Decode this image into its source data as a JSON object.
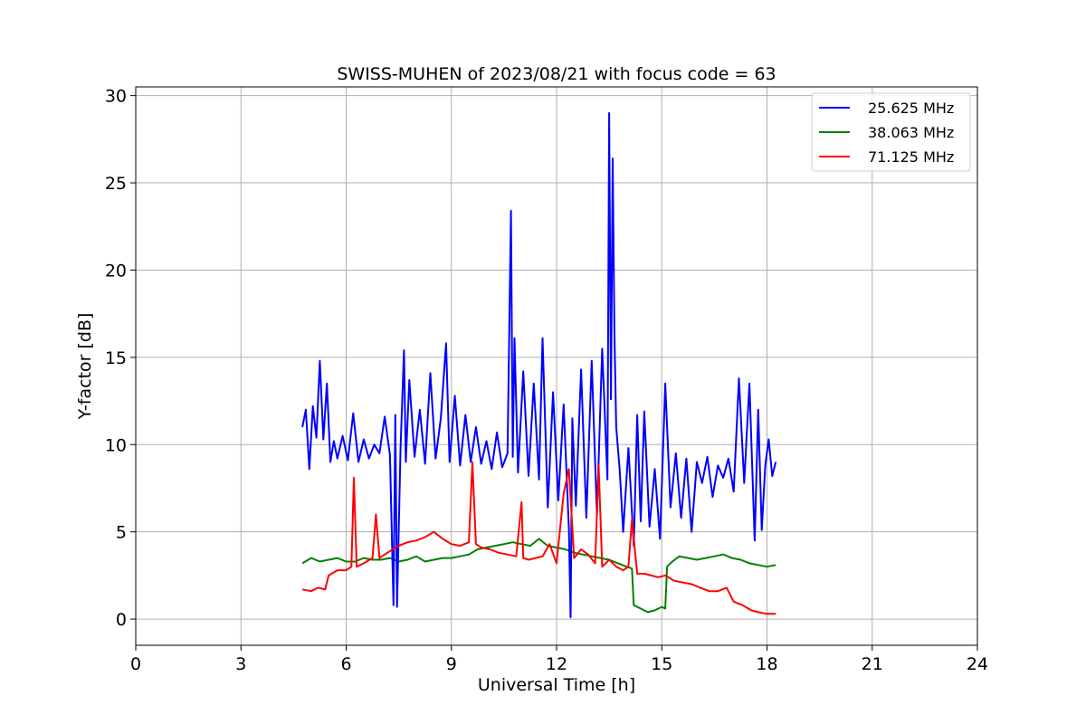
{
  "chart_data": {
    "type": "line",
    "title": "SWISS-MUHEN of 2023/08/21 with focus code = 63",
    "xlabel": "Universal Time [h]",
    "ylabel": "Y-factor [dB]",
    "xlim": [
      0,
      24
    ],
    "ylim": [
      -1.5,
      30.5
    ],
    "xticks": [
      0,
      3,
      6,
      9,
      12,
      15,
      18,
      21,
      24
    ],
    "yticks": [
      0,
      5,
      10,
      15,
      20,
      25,
      30
    ],
    "grid": true,
    "legend_position": "top-right",
    "series": [
      {
        "name": "25.625 MHz",
        "color": "#0000ff",
        "x": [
          4.75,
          4.85,
          4.95,
          5.05,
          5.15,
          5.25,
          5.35,
          5.45,
          5.55,
          5.65,
          5.75,
          5.9,
          6.05,
          6.2,
          6.35,
          6.5,
          6.65,
          6.8,
          6.95,
          7.1,
          7.25,
          7.35,
          7.4,
          7.45,
          7.55,
          7.65,
          7.7,
          7.8,
          7.95,
          8.1,
          8.25,
          8.4,
          8.55,
          8.7,
          8.85,
          8.95,
          9.1,
          9.25,
          9.4,
          9.55,
          9.7,
          9.85,
          10.0,
          10.15,
          10.3,
          10.45,
          10.6,
          10.7,
          10.75,
          10.8,
          10.9,
          11.05,
          11.2,
          11.35,
          11.5,
          11.6,
          11.75,
          11.9,
          12.05,
          12.2,
          12.35,
          12.4,
          12.45,
          12.55,
          12.7,
          12.85,
          13.0,
          13.15,
          13.3,
          13.45,
          13.5,
          13.55,
          13.6,
          13.65,
          13.7,
          13.8,
          13.9,
          14.05,
          14.2,
          14.3,
          14.4,
          14.5,
          14.65,
          14.8,
          14.95,
          15.1,
          15.25,
          15.4,
          15.55,
          15.7,
          15.85,
          16.0,
          16.15,
          16.3,
          16.45,
          16.6,
          16.75,
          16.9,
          17.05,
          17.2,
          17.35,
          17.5,
          17.65,
          17.75,
          17.85,
          17.95,
          18.05,
          18.15,
          18.25
        ],
        "y": [
          11.0,
          12.0,
          8.6,
          12.2,
          10.4,
          14.8,
          10.3,
          13.5,
          9.0,
          10.2,
          9.2,
          10.5,
          9.1,
          11.8,
          9.0,
          10.3,
          9.2,
          10.0,
          9.5,
          11.6,
          9.4,
          0.8,
          11.7,
          0.7,
          9.8,
          15.4,
          9.0,
          13.7,
          9.3,
          12.0,
          8.9,
          14.1,
          9.2,
          11.5,
          15.8,
          9.0,
          12.8,
          8.8,
          11.7,
          9.0,
          11.0,
          8.9,
          10.2,
          8.6,
          10.7,
          8.7,
          9.5,
          23.4,
          9.3,
          16.1,
          8.4,
          14.2,
          8.2,
          13.5,
          8.0,
          16.1,
          6.4,
          13.0,
          6.8,
          12.3,
          5.2,
          0.1,
          11.5,
          6.5,
          14.3,
          5.8,
          14.8,
          6.0,
          15.5,
          8.0,
          29.0,
          12.6,
          26.4,
          16.5,
          11.0,
          8.5,
          5.0,
          9.8,
          4.2,
          11.7,
          5.6,
          11.9,
          5.3,
          8.6,
          4.6,
          13.5,
          6.4,
          9.5,
          5.8,
          9.2,
          5.0,
          9.0,
          7.8,
          9.3,
          7.0,
          8.8,
          8.1,
          9.2,
          7.3,
          13.8,
          7.8,
          13.5,
          4.5,
          12.0,
          5.1,
          8.8,
          10.3,
          8.2,
          9.0
        ]
      },
      {
        "name": "38.063 MHz",
        "color": "#008000",
        "x": [
          4.75,
          5.0,
          5.25,
          5.5,
          5.75,
          6.0,
          6.25,
          6.5,
          6.75,
          7.0,
          7.25,
          7.5,
          7.75,
          8.0,
          8.25,
          8.5,
          8.75,
          9.0,
          9.25,
          9.5,
          9.75,
          10.0,
          10.25,
          10.5,
          10.75,
          11.0,
          11.25,
          11.5,
          11.75,
          12.0,
          12.25,
          12.5,
          12.75,
          13.0,
          13.25,
          13.5,
          13.75,
          14.0,
          14.15,
          14.2,
          14.4,
          14.6,
          14.8,
          15.0,
          15.1,
          15.15,
          15.3,
          15.5,
          15.75,
          16.0,
          16.25,
          16.5,
          16.75,
          17.0,
          17.25,
          17.5,
          17.75,
          18.0,
          18.25
        ],
        "y": [
          3.2,
          3.5,
          3.3,
          3.4,
          3.5,
          3.3,
          3.3,
          3.5,
          3.4,
          3.4,
          3.5,
          3.3,
          3.4,
          3.6,
          3.3,
          3.4,
          3.5,
          3.5,
          3.6,
          3.7,
          4.0,
          4.1,
          4.2,
          4.3,
          4.4,
          4.3,
          4.2,
          4.6,
          4.2,
          4.1,
          4.0,
          3.8,
          3.7,
          3.6,
          3.5,
          3.4,
          3.2,
          3.0,
          2.9,
          0.8,
          0.6,
          0.4,
          0.5,
          0.7,
          0.6,
          3.0,
          3.3,
          3.6,
          3.5,
          3.4,
          3.5,
          3.6,
          3.7,
          3.5,
          3.4,
          3.2,
          3.1,
          3.0,
          3.1
        ]
      },
      {
        "name": "71.125 MHz",
        "color": "#ff0000",
        "x": [
          4.75,
          5.0,
          5.2,
          5.4,
          5.5,
          5.75,
          6.0,
          6.15,
          6.22,
          6.3,
          6.5,
          6.75,
          6.85,
          6.95,
          7.25,
          7.5,
          7.75,
          8.0,
          8.25,
          8.5,
          8.75,
          9.0,
          9.25,
          9.5,
          9.6,
          9.7,
          9.85,
          10.1,
          10.35,
          10.6,
          10.85,
          11.0,
          11.05,
          11.2,
          11.4,
          11.6,
          11.8,
          12.0,
          12.2,
          12.35,
          12.5,
          12.7,
          12.9,
          13.1,
          13.2,
          13.3,
          13.5,
          13.7,
          13.9,
          14.05,
          14.15,
          14.3,
          14.5,
          14.7,
          14.9,
          15.1,
          15.35,
          15.6,
          15.85,
          16.1,
          16.35,
          16.6,
          16.85,
          17.05,
          17.3,
          17.55,
          17.75,
          18.0,
          18.25
        ],
        "y": [
          1.7,
          1.6,
          1.8,
          1.7,
          2.5,
          2.8,
          2.8,
          3.0,
          8.1,
          3.0,
          3.2,
          3.5,
          6.0,
          3.5,
          3.9,
          4.2,
          4.4,
          4.5,
          4.7,
          5.0,
          4.6,
          4.3,
          4.2,
          4.4,
          9.0,
          4.3,
          4.1,
          4.0,
          3.8,
          3.7,
          3.6,
          6.7,
          3.5,
          3.4,
          3.5,
          3.6,
          4.3,
          3.2,
          7.2,
          8.6,
          3.5,
          4.0,
          3.7,
          3.2,
          8.8,
          3.0,
          3.4,
          3.0,
          2.8,
          3.0,
          5.7,
          2.6,
          2.6,
          2.5,
          2.4,
          2.5,
          2.2,
          2.1,
          2.0,
          1.8,
          1.6,
          1.6,
          1.8,
          1.0,
          0.8,
          0.5,
          0.4,
          0.3,
          0.3
        ]
      }
    ]
  }
}
